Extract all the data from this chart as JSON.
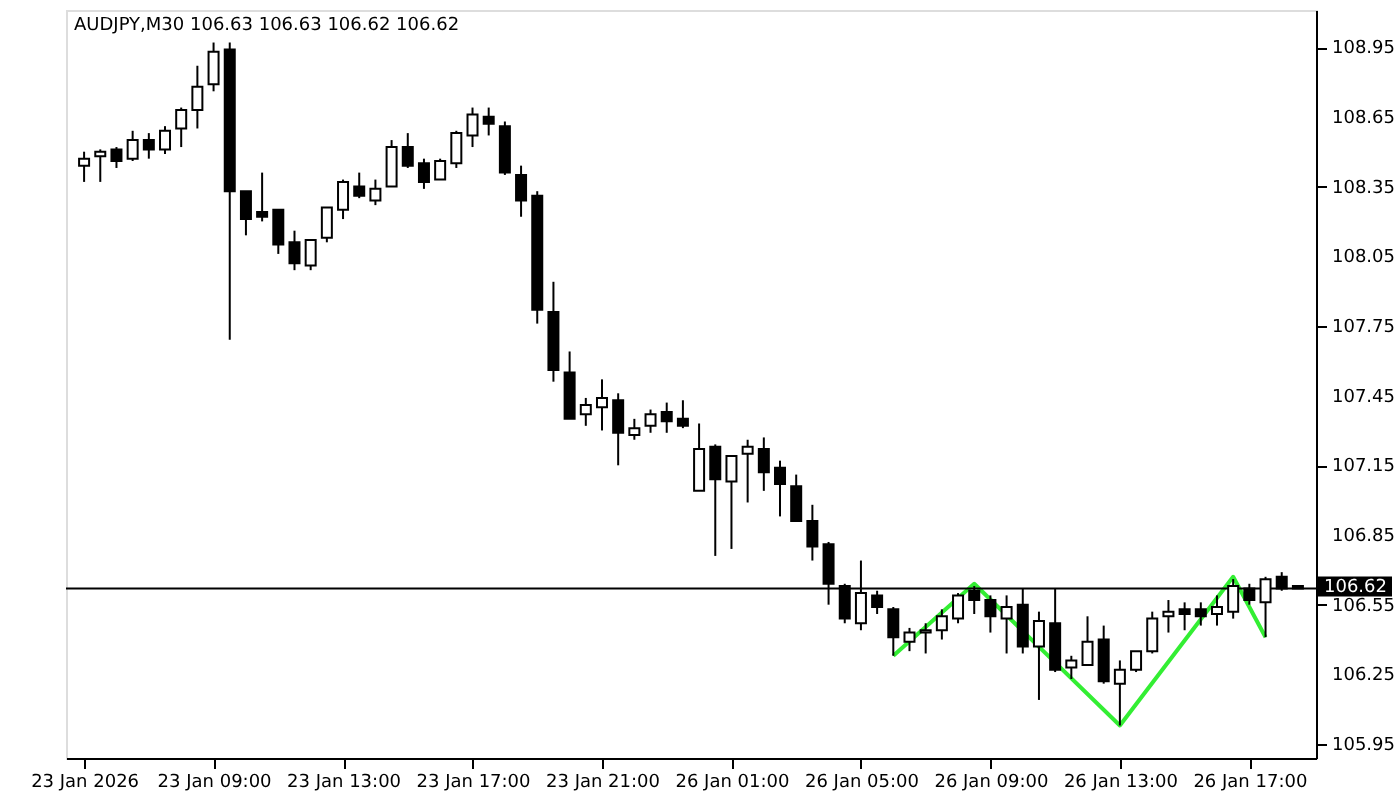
{
  "chart_data": {
    "type": "candlestick",
    "title": "AUDJPY,M30  106.63 106.63 106.62 106.62",
    "categories": [
      "23 Jan 2026",
      null,
      null,
      null,
      null,
      null,
      null,
      null,
      "23 Jan 09:00",
      null,
      null,
      null,
      null,
      null,
      null,
      null,
      "23 Jan 13:00",
      null,
      null,
      null,
      null,
      null,
      null,
      null,
      "23 Jan 17:00",
      null,
      null,
      null,
      null,
      null,
      null,
      null,
      "23 Jan 21:00",
      null,
      null,
      null,
      null,
      null,
      null,
      null,
      "26 Jan 01:00",
      null,
      null,
      null,
      null,
      null,
      null,
      null,
      "26 Jan 05:00",
      null,
      null,
      null,
      null,
      null,
      null,
      null,
      "26 Jan 09:00",
      null,
      null,
      null,
      null,
      null,
      null,
      null,
      "26 Jan 13:00",
      null,
      null,
      null,
      null,
      null,
      null,
      null,
      "26 Jan 17:00",
      null,
      null,
      null
    ],
    "ohlc": [
      [
        108.44,
        108.5,
        108.37,
        108.47
      ],
      [
        108.48,
        108.51,
        108.37,
        108.5
      ],
      [
        108.51,
        108.52,
        108.43,
        108.46
      ],
      [
        108.47,
        108.59,
        108.46,
        108.55
      ],
      [
        108.55,
        108.58,
        108.47,
        108.51
      ],
      [
        108.51,
        108.61,
        108.49,
        108.59
      ],
      [
        108.6,
        108.69,
        108.52,
        108.68
      ],
      [
        108.68,
        108.87,
        108.6,
        108.78
      ],
      [
        108.79,
        108.97,
        108.76,
        108.93
      ],
      [
        108.94,
        108.97,
        107.69,
        108.33
      ],
      [
        108.33,
        108.33,
        108.14,
        108.21
      ],
      [
        108.24,
        108.41,
        108.2,
        108.22
      ],
      [
        108.25,
        108.25,
        108.06,
        108.1
      ],
      [
        108.11,
        108.16,
        107.99,
        108.02
      ],
      [
        108.01,
        108.12,
        107.99,
        108.12
      ],
      [
        108.13,
        108.26,
        108.11,
        108.26
      ],
      [
        108.25,
        108.38,
        108.21,
        108.37
      ],
      [
        108.35,
        108.41,
        108.3,
        108.31
      ],
      [
        108.29,
        108.38,
        108.27,
        108.34
      ],
      [
        108.35,
        108.55,
        108.35,
        108.52
      ],
      [
        108.52,
        108.58,
        108.43,
        108.44
      ],
      [
        108.45,
        108.47,
        108.34,
        108.37
      ],
      [
        108.38,
        108.47,
        108.38,
        108.46
      ],
      [
        108.45,
        108.59,
        108.43,
        108.58
      ],
      [
        108.57,
        108.69,
        108.52,
        108.66
      ],
      [
        108.65,
        108.69,
        108.57,
        108.62
      ],
      [
        108.61,
        108.63,
        108.4,
        108.41
      ],
      [
        108.4,
        108.44,
        108.22,
        108.29
      ],
      [
        108.31,
        108.33,
        107.76,
        107.82
      ],
      [
        107.81,
        107.94,
        107.51,
        107.56
      ],
      [
        107.55,
        107.64,
        107.35,
        107.35
      ],
      [
        107.37,
        107.44,
        107.32,
        107.41
      ],
      [
        107.4,
        107.52,
        107.3,
        107.44
      ],
      [
        107.43,
        107.46,
        107.15,
        107.29
      ],
      [
        107.28,
        107.35,
        107.26,
        107.31
      ],
      [
        107.32,
        107.39,
        107.29,
        107.37
      ],
      [
        107.38,
        107.42,
        107.29,
        107.34
      ],
      [
        107.35,
        107.43,
        107.31,
        107.32
      ],
      [
        107.04,
        107.33,
        107.04,
        107.22
      ],
      [
        107.23,
        107.24,
        106.76,
        107.09
      ],
      [
        107.08,
        107.19,
        106.79,
        107.19
      ],
      [
        107.2,
        107.26,
        106.99,
        107.23
      ],
      [
        107.22,
        107.27,
        107.04,
        107.12
      ],
      [
        107.14,
        107.17,
        106.93,
        107.07
      ],
      [
        107.06,
        107.11,
        106.91,
        106.91
      ],
      [
        106.91,
        106.98,
        106.74,
        106.8
      ],
      [
        106.81,
        106.82,
        106.55,
        106.64
      ],
      [
        106.63,
        106.64,
        106.47,
        106.49
      ],
      [
        106.47,
        106.74,
        106.44,
        106.6
      ],
      [
        106.59,
        106.61,
        106.51,
        106.54
      ],
      [
        106.53,
        106.54,
        106.33,
        106.41
      ],
      [
        106.39,
        106.45,
        106.35,
        106.43
      ],
      [
        106.43,
        106.47,
        106.34,
        106.44
      ],
      [
        106.44,
        106.53,
        106.4,
        106.5
      ],
      [
        106.49,
        106.6,
        106.47,
        106.59
      ],
      [
        106.61,
        106.63,
        106.51,
        106.57
      ],
      [
        106.57,
        106.59,
        106.43,
        106.5
      ],
      [
        106.49,
        106.59,
        106.34,
        106.54
      ],
      [
        106.55,
        106.62,
        106.34,
        106.37
      ],
      [
        106.37,
        106.52,
        106.14,
        106.48
      ],
      [
        106.47,
        106.62,
        106.26,
        106.27
      ],
      [
        106.28,
        106.33,
        106.23,
        106.31
      ],
      [
        106.29,
        106.5,
        106.29,
        106.39
      ],
      [
        106.4,
        106.46,
        106.21,
        106.22
      ],
      [
        106.21,
        106.31,
        106.03,
        106.27
      ],
      [
        106.27,
        106.35,
        106.26,
        106.35
      ],
      [
        106.35,
        106.52,
        106.34,
        106.49
      ],
      [
        106.5,
        106.57,
        106.43,
        106.52
      ],
      [
        106.53,
        106.56,
        106.44,
        106.51
      ],
      [
        106.53,
        106.56,
        106.46,
        106.5
      ],
      [
        106.51,
        106.59,
        106.46,
        106.54
      ],
      [
        106.52,
        106.66,
        106.49,
        106.63
      ],
      [
        106.62,
        106.64,
        106.55,
        106.57
      ],
      [
        106.56,
        106.67,
        106.41,
        106.66
      ],
      [
        106.67,
        106.69,
        106.61,
        106.62
      ],
      [
        106.63,
        106.63,
        106.62,
        106.62
      ]
    ],
    "series": [
      {
        "type": "line",
        "color": "#33ee33",
        "values": [
          null,
          null,
          null,
          null,
          null,
          null,
          null,
          null,
          null,
          null,
          null,
          null,
          null,
          null,
          null,
          null,
          null,
          null,
          null,
          null,
          null,
          null,
          null,
          null,
          null,
          null,
          null,
          null,
          null,
          null,
          null,
          null,
          null,
          null,
          null,
          null,
          null,
          null,
          null,
          null,
          null,
          null,
          null,
          null,
          null,
          null,
          null,
          null,
          null,
          null,
          106.33,
          null,
          null,
          null,
          null,
          106.64,
          null,
          null,
          null,
          null,
          null,
          null,
          null,
          null,
          106.03,
          null,
          null,
          null,
          null,
          null,
          null,
          106.67,
          null,
          106.41,
          null,
          null
        ]
      }
    ],
    "ref_lines": [
      {
        "axis": "y",
        "value": 106.62,
        "label": "106.62"
      }
    ],
    "ylim": [
      105.89,
      109.11
    ],
    "yticks": [
      105.95,
      106.25,
      106.55,
      106.85,
      107.15,
      107.45,
      107.75,
      108.05,
      108.35,
      108.65,
      108.95
    ]
  }
}
